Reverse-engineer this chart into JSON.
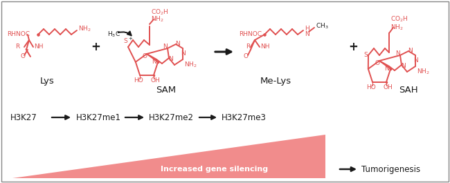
{
  "bg_color": "#ffffff",
  "border_color": "#888888",
  "red": "#e05050",
  "black": "#1a1a1a",
  "pink": "#f08080",
  "triangle_color": "#f08080",
  "triangle_alpha": 0.9,
  "label_lys": "Lys",
  "label_sam": "SAM",
  "label_melys": "Me-Lys",
  "label_sah": "SAH",
  "seq_labels": [
    "H3K27",
    "H3K27me1",
    "H3K27me2",
    "H3K27me3"
  ],
  "label_gene_silencing": "Increased gene silencing",
  "label_tumorigenesis": "Tumorigenesis",
  "figsize": [
    6.5,
    2.65
  ],
  "dpi": 100
}
